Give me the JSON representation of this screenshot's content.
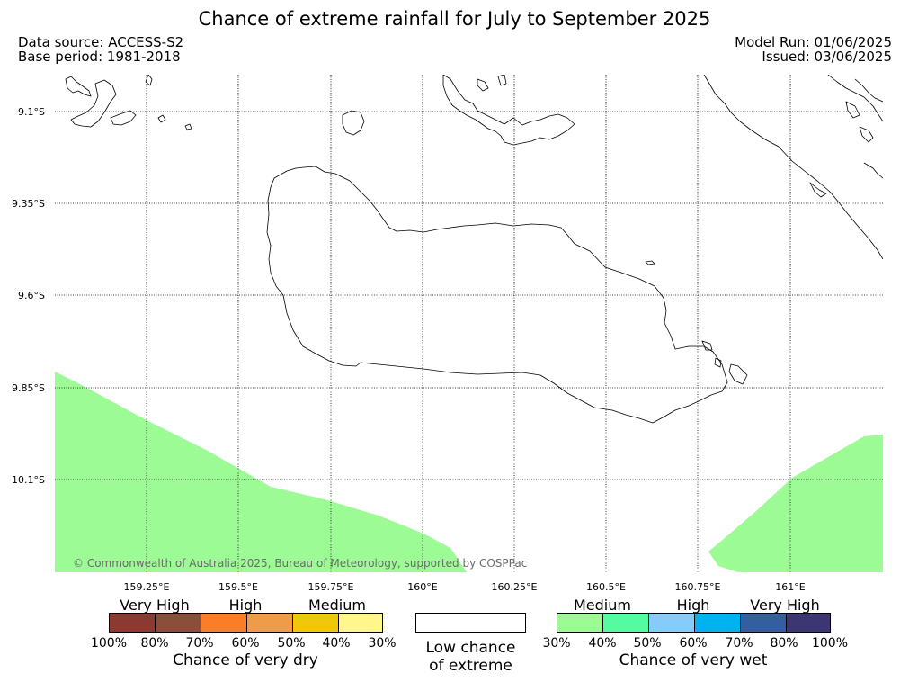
{
  "title": "Chance of extreme rainfall for July to September 2025",
  "data_source": "Data source: ACCESS-S2",
  "base_period": "Base period: 1981-2018",
  "model_run": "Model Run: 01/06/2025",
  "issued": "Issued: 03/06/2025",
  "copyright": "© Commonwealth of Australia 2025, Bureau of Meteorology, supported by COSPPac",
  "lat_labels": [
    "9.1°S",
    "9.35°S",
    "9.6°S",
    "9.85°S",
    "10.1°S"
  ],
  "lon_labels": [
    "159.25°E",
    "159.5°E",
    "159.75°E",
    "160°E",
    "160.25°E",
    "160.5°E",
    "160.75°E",
    "161°E"
  ],
  "dry_legend": {
    "categories": [
      "Very High",
      "High",
      "Medium"
    ],
    "ticks": [
      "100%",
      "80%",
      "70%",
      "60%",
      "50%",
      "40%",
      "30%"
    ],
    "colors": [
      "#8b3a32",
      "#8b4e3a",
      "#fa7d28",
      "#ee9c4a",
      "#f0c80a",
      "#fff68c"
    ],
    "title": "Chance of very dry"
  },
  "low_legend": {
    "line1": "Low chance",
    "line2": "of extreme",
    "color": "#ffffff"
  },
  "wet_legend": {
    "categories": [
      "Medium",
      "High",
      "Very High"
    ],
    "ticks": [
      "30%",
      "40%",
      "50%",
      "60%",
      "70%",
      "80%",
      "100%"
    ],
    "colors": [
      "#9cfb94",
      "#55fba0",
      "#87cbfa",
      "#00b3ee",
      "#335f9e",
      "#3c3773"
    ],
    "title": "Chance of very wet"
  },
  "map_fill_color": "#9cfb94"
}
